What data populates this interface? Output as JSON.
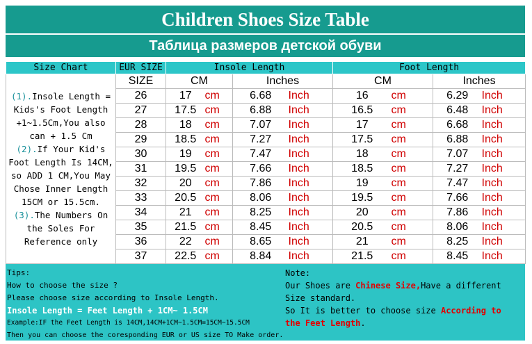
{
  "header": {
    "title": "Children Shoes Size Table",
    "subtitle": "Таблица размеров детской обуви"
  },
  "table": {
    "size_chart": "Size Chart",
    "eur_size": "EUR SIZE",
    "insole_length": "Insole Length",
    "foot_length": "Foot Length",
    "size": "SIZE",
    "cm_header": "CM",
    "inches_header": "Inches",
    "cm_unit": "cm",
    "inch_unit": "Inch",
    "rows": [
      [
        "26",
        "17",
        "6.68",
        "16",
        "6.29"
      ],
      [
        "27",
        "17.5",
        "6.88",
        "16.5",
        "6.48"
      ],
      [
        "28",
        "18",
        "7.07",
        "17",
        "6.68"
      ],
      [
        "29",
        "18.5",
        "7.27",
        "17.5",
        "6.88"
      ],
      [
        "30",
        "19",
        "7.47",
        "18",
        "7.07"
      ],
      [
        "31",
        "19.5",
        "7.66",
        "18.5",
        "7.27"
      ],
      [
        "32",
        "20",
        "7.86",
        "19",
        "7.47"
      ],
      [
        "33",
        "20.5",
        "8.06",
        "19.5",
        "7.66"
      ],
      [
        "34",
        "21",
        "8.25",
        "20",
        "7.86"
      ],
      [
        "35",
        "21.5",
        "8.45",
        "20.5",
        "8.06"
      ],
      [
        "36",
        "22",
        "8.65",
        "21",
        "8.25"
      ],
      [
        "37",
        "22.5",
        "8.84",
        "21.5",
        "8.45"
      ]
    ]
  },
  "notes": [
    {
      "num": "(1).",
      "text": "Insole Length = Kids's Foot Length +1~1.5Cm,You also can + 1.5 Cm"
    },
    {
      "num": "(2).",
      "text": "If Your Kid's Foot Length Is 14CM, so ADD 1 CM,You May Chose Inner Length 15CM or 15.5cm."
    },
    {
      "num": "(3).",
      "text": "The Numbers On the Soles For Reference only"
    }
  ],
  "tips": {
    "heading": "Tips:",
    "line1": "How to choose the size ?",
    "line2": "Please choose size according to Insole Length.",
    "formula": "Insole Length = Feet Length + 1CM~ 1.5CM",
    "example": "Example:IF the Feet Length is 14CM,14CM+1CM~1.5CM=15CM~15.5CM",
    "line3": "Then you can choose the coresponding EUR or US size TO Make order."
  },
  "note": {
    "heading": "Note:",
    "p1a": "Our Shoes are ",
    "p1b": "Chinese Size,",
    "p1c": "Have a different Size standard.",
    "p2a": "So It is better to choose size ",
    "p2b": "According to the ",
    "p2c": "Feet Length",
    "p2d": "."
  }
}
